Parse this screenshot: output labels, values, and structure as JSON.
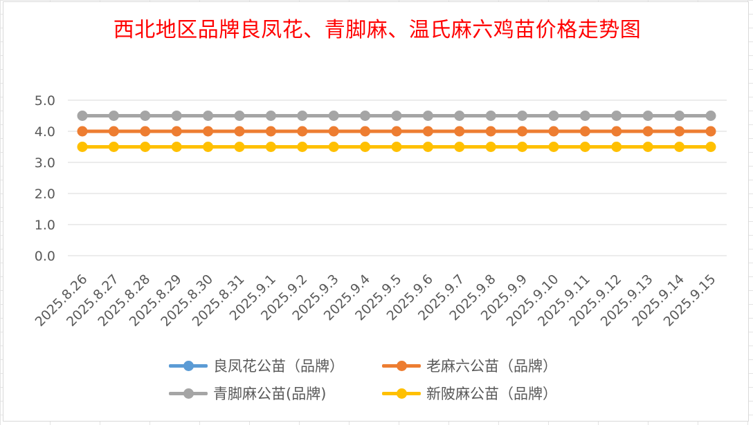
{
  "chart_data": {
    "type": "line",
    "title": "西北地区品牌良凤花、青脚麻、温氏麻六鸡苗价格走势图",
    "xlabel": "",
    "ylabel": "",
    "ylim": [
      0,
      5
    ],
    "yticks": [
      "0.0",
      "1.0",
      "2.0",
      "3.0",
      "4.0",
      "5.0"
    ],
    "grid": true,
    "legend": "bottom",
    "categories": [
      "2025.8.26",
      "2025.8.27",
      "2025.8.28",
      "2025.8.29",
      "2025.8.30",
      "2025.8.31",
      "2025.9.1",
      "2025.9.2",
      "2025.9.3",
      "2025.9.4",
      "2025.9.5",
      "2025.9.6",
      "2025.9.7",
      "2025.9.8",
      "2025.9.9",
      "2025.9.10",
      "2025.9.11",
      "2025.9.12",
      "2025.9.13",
      "2025.9.14",
      "2025.9.15"
    ],
    "series": [
      {
        "name": "良凤花公苗（品牌）",
        "color": "#5b9bd5",
        "values": [
          null,
          null,
          null,
          null,
          null,
          null,
          null,
          null,
          null,
          null,
          null,
          null,
          null,
          null,
          null,
          null,
          null,
          null,
          null,
          null,
          null
        ]
      },
      {
        "name": "老麻六公苗（品牌）",
        "color": "#ed7d31",
        "values": [
          4.0,
          4.0,
          4.0,
          4.0,
          4.0,
          4.0,
          4.0,
          4.0,
          4.0,
          4.0,
          4.0,
          4.0,
          4.0,
          4.0,
          4.0,
          4.0,
          4.0,
          4.0,
          4.0,
          4.0,
          4.0
        ]
      },
      {
        "name": "青脚麻公苗(品牌)",
        "color": "#a5a5a5",
        "values": [
          4.5,
          4.5,
          4.5,
          4.5,
          4.5,
          4.5,
          4.5,
          4.5,
          4.5,
          4.5,
          4.5,
          4.5,
          4.5,
          4.5,
          4.5,
          4.5,
          4.5,
          4.5,
          4.5,
          4.5,
          4.5
        ]
      },
      {
        "name": "新陂麻公苗（品牌）",
        "color": "#ffc000",
        "values": [
          3.5,
          3.5,
          3.5,
          3.5,
          3.5,
          3.5,
          3.5,
          3.5,
          3.5,
          3.5,
          3.5,
          3.5,
          3.5,
          3.5,
          3.5,
          3.5,
          3.5,
          3.5,
          3.5,
          3.5,
          3.5
        ]
      }
    ]
  }
}
